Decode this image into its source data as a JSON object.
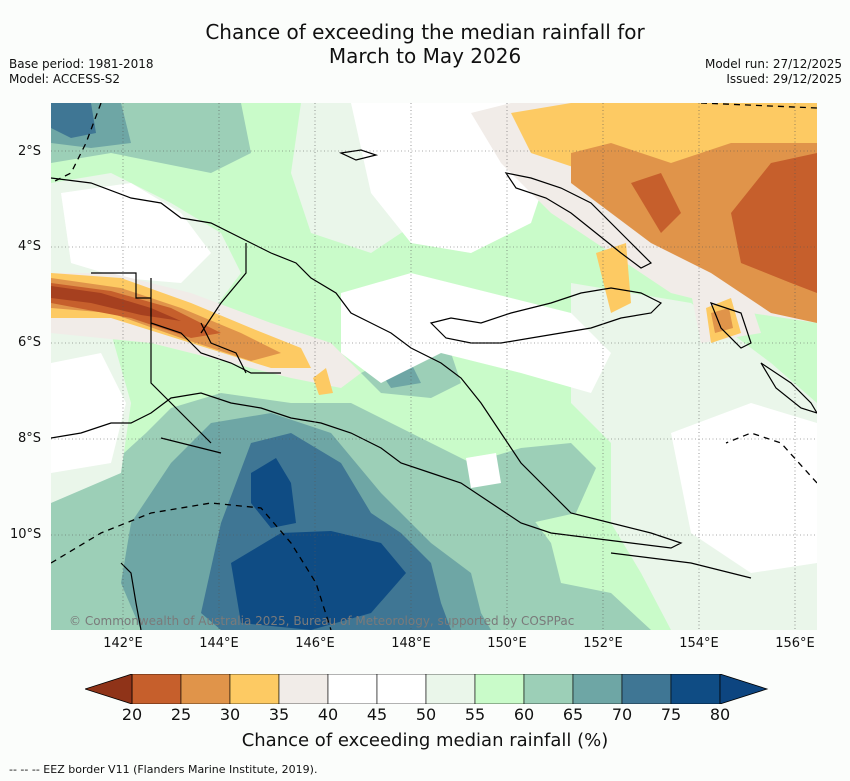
{
  "title": {
    "line1": "Chance of exceeding the median rainfall for",
    "line2": "March to May 2026"
  },
  "meta": {
    "base_period": "Base period: 1981-2018",
    "model": "Model: ACCESS-S2",
    "model_run": "Model run: 27/12/2025",
    "issued": "Issued: 29/12/2025"
  },
  "map": {
    "lat_labels": [
      "2°S",
      "4°S",
      "6°S",
      "8°S",
      "10°S"
    ],
    "lon_labels": [
      "142°E",
      "144°E",
      "146°E",
      "148°E",
      "150°E",
      "152°E",
      "154°E",
      "156°E"
    ],
    "copyright": "© Commonwealth of Australia 2025, Bureau of Meteorology, supported by COSPPac"
  },
  "colorbar": {
    "ticks": [
      "20",
      "25",
      "30",
      "35",
      "40",
      "45",
      "50",
      "55",
      "60",
      "65",
      "70",
      "75",
      "80"
    ],
    "colors": [
      "#a6401f",
      "#c65f2c",
      "#e0944a",
      "#fdca63",
      "#f1ece8",
      "#ffffff",
      "#ffffff",
      "#eaf6ea",
      "#c9fbc9",
      "#9ccfb7",
      "#6ea6a5",
      "#3f7694",
      "#0f4c84"
    ],
    "low_color": "#8f3318",
    "high_color": "#0d4580",
    "title": "Chance of exceeding median rainfall (%)"
  },
  "footer": {
    "legend": "-- -- -- EEZ border V11 (Flanders Marine Institute, 2019)."
  }
}
